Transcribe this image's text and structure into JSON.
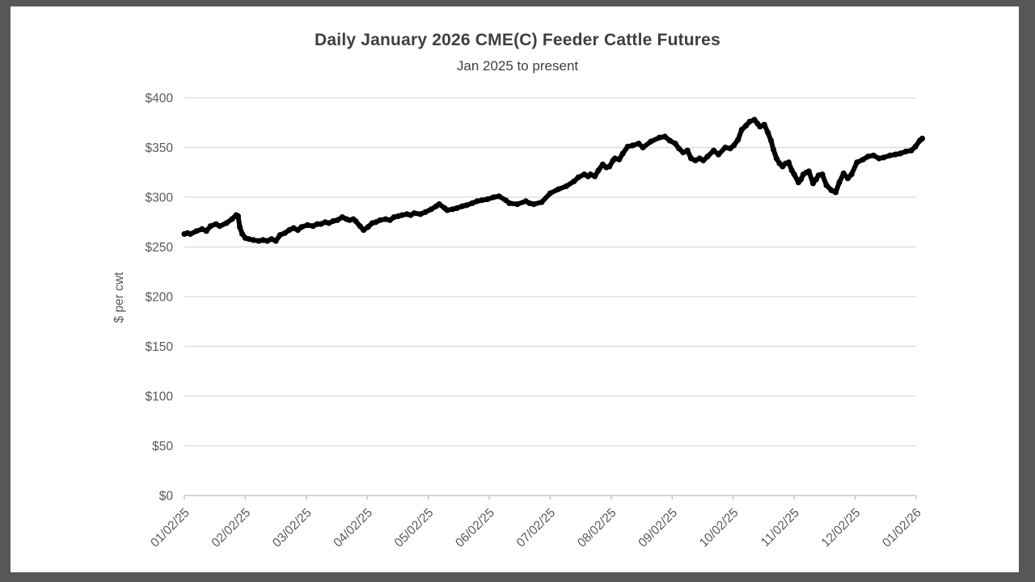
{
  "frame": {
    "border_color": "#575757",
    "background": "#ffffff"
  },
  "colors": {
    "grid": "#d9d9d9",
    "axis_line": "#bfbfbf",
    "tick_text": "#595959",
    "title_text": "#3f3f3f",
    "line": "#000000"
  },
  "chart_data": {
    "type": "line",
    "title": "Daily January 2026 CME(C) Feeder Cattle Futures",
    "subtitle": "Jan 2025 to present",
    "xlabel": "",
    "ylabel": "$ per cwt",
    "ylim": [
      0,
      400
    ],
    "y_tick_values": [
      0,
      50,
      100,
      150,
      200,
      250,
      300,
      350,
      400
    ],
    "y_tick_labels": [
      "$0",
      "$50",
      "$100",
      "$150",
      "$200",
      "$250",
      "$300",
      "$350",
      "$400"
    ],
    "x_ticks": [
      "01/02/25",
      "02/02/25",
      "03/02/25",
      "04/02/25",
      "05/02/25",
      "06/02/25",
      "07/02/25",
      "08/02/25",
      "09/02/25",
      "10/02/25",
      "11/02/25",
      "12/02/25",
      "01/02/26"
    ],
    "grid": "horizontal",
    "legend": "none",
    "marker": true,
    "x_unit": "months since 01/02/25",
    "series": [
      {
        "points": [
          [
            0.0,
            263
          ],
          [
            0.05,
            264
          ],
          [
            0.1,
            263
          ],
          [
            0.2,
            266
          ],
          [
            0.29,
            268
          ],
          [
            0.36,
            266
          ],
          [
            0.43,
            271
          ],
          [
            0.52,
            273
          ],
          [
            0.58,
            271
          ],
          [
            0.69,
            274
          ],
          [
            0.78,
            278
          ],
          [
            0.85,
            282
          ],
          [
            0.88,
            281
          ],
          [
            0.91,
            270
          ],
          [
            0.95,
            263
          ],
          [
            1.0,
            259
          ],
          [
            1.06,
            258
          ],
          [
            1.13,
            257
          ],
          [
            1.22,
            256
          ],
          [
            1.29,
            257
          ],
          [
            1.36,
            256
          ],
          [
            1.43,
            258
          ],
          [
            1.5,
            256
          ],
          [
            1.57,
            262
          ],
          [
            1.65,
            264
          ],
          [
            1.72,
            267
          ],
          [
            1.79,
            269
          ],
          [
            1.86,
            267
          ],
          [
            1.92,
            270
          ],
          [
            2.02,
            272
          ],
          [
            2.11,
            271
          ],
          [
            2.18,
            273
          ],
          [
            2.24,
            273
          ],
          [
            2.31,
            275
          ],
          [
            2.37,
            274
          ],
          [
            2.44,
            276
          ],
          [
            2.51,
            277
          ],
          [
            2.59,
            280
          ],
          [
            2.66,
            278
          ],
          [
            2.71,
            277
          ],
          [
            2.77,
            278
          ],
          [
            2.81,
            276
          ],
          [
            2.88,
            271
          ],
          [
            2.94,
            267
          ],
          [
            3.01,
            270
          ],
          [
            3.08,
            274
          ],
          [
            3.14,
            275
          ],
          [
            3.21,
            277
          ],
          [
            3.3,
            278
          ],
          [
            3.37,
            277
          ],
          [
            3.44,
            280
          ],
          [
            3.51,
            281
          ],
          [
            3.57,
            282
          ],
          [
            3.65,
            283
          ],
          [
            3.71,
            282
          ],
          [
            3.77,
            284
          ],
          [
            3.87,
            283
          ],
          [
            3.95,
            285
          ],
          [
            4.05,
            288
          ],
          [
            4.13,
            291
          ],
          [
            4.18,
            293
          ],
          [
            4.27,
            289
          ],
          [
            4.31,
            287
          ],
          [
            4.4,
            288
          ],
          [
            4.47,
            289
          ],
          [
            4.56,
            291
          ],
          [
            4.63,
            292
          ],
          [
            4.72,
            294
          ],
          [
            4.8,
            296
          ],
          [
            4.88,
            297
          ],
          [
            4.97,
            298
          ],
          [
            5.07,
            300
          ],
          [
            5.16,
            301
          ],
          [
            5.27,
            297
          ],
          [
            5.33,
            294
          ],
          [
            5.46,
            293
          ],
          [
            5.6,
            296
          ],
          [
            5.66,
            294
          ],
          [
            5.73,
            293
          ],
          [
            5.86,
            295
          ],
          [
            6.0,
            304
          ],
          [
            6.13,
            308
          ],
          [
            6.26,
            311
          ],
          [
            6.39,
            316
          ],
          [
            6.46,
            320
          ],
          [
            6.56,
            323
          ],
          [
            6.62,
            321
          ],
          [
            6.66,
            323
          ],
          [
            6.73,
            321
          ],
          [
            6.79,
            327
          ],
          [
            6.86,
            333
          ],
          [
            6.92,
            330
          ],
          [
            6.97,
            331
          ],
          [
            7.03,
            337
          ],
          [
            7.06,
            339
          ],
          [
            7.13,
            338
          ],
          [
            7.19,
            344
          ],
          [
            7.27,
            351
          ],
          [
            7.35,
            352
          ],
          [
            7.45,
            354
          ],
          [
            7.52,
            350
          ],
          [
            7.65,
            356
          ],
          [
            7.79,
            360
          ],
          [
            7.88,
            361
          ],
          [
            7.96,
            357
          ],
          [
            8.05,
            354
          ],
          [
            8.11,
            349
          ],
          [
            8.18,
            345
          ],
          [
            8.25,
            347
          ],
          [
            8.31,
            339
          ],
          [
            8.38,
            337
          ],
          [
            8.45,
            339
          ],
          [
            8.51,
            337
          ],
          [
            8.58,
            341
          ],
          [
            8.68,
            347
          ],
          [
            8.76,
            343
          ],
          [
            8.87,
            350
          ],
          [
            8.95,
            349
          ],
          [
            9.01,
            352
          ],
          [
            9.08,
            358
          ],
          [
            9.14,
            368
          ],
          [
            9.21,
            372
          ],
          [
            9.27,
            376
          ],
          [
            9.35,
            378
          ],
          [
            9.4,
            374
          ],
          [
            9.44,
            371
          ],
          [
            9.51,
            373
          ],
          [
            9.57,
            365
          ],
          [
            9.62,
            357
          ],
          [
            9.66,
            348
          ],
          [
            9.71,
            339
          ],
          [
            9.76,
            334
          ],
          [
            9.81,
            331
          ],
          [
            9.86,
            334
          ],
          [
            9.91,
            335
          ],
          [
            9.96,
            327
          ],
          [
            10.0,
            323
          ],
          [
            10.07,
            315
          ],
          [
            10.11,
            318
          ],
          [
            10.15,
            323
          ],
          [
            10.2,
            325
          ],
          [
            10.24,
            326
          ],
          [
            10.31,
            314
          ],
          [
            10.36,
            318
          ],
          [
            10.4,
            322
          ],
          [
            10.46,
            323
          ],
          [
            10.53,
            312
          ],
          [
            10.61,
            307
          ],
          [
            10.68,
            305
          ],
          [
            10.74,
            315
          ],
          [
            10.81,
            324
          ],
          [
            10.88,
            319
          ],
          [
            10.94,
            323
          ],
          [
            11.03,
            335
          ],
          [
            11.13,
            338
          ],
          [
            11.21,
            341
          ],
          [
            11.3,
            342
          ],
          [
            11.39,
            339
          ],
          [
            11.47,
            340
          ],
          [
            11.57,
            342
          ],
          [
            11.66,
            343
          ],
          [
            11.74,
            344
          ],
          [
            11.83,
            346
          ],
          [
            11.92,
            347
          ],
          [
            11.99,
            351
          ],
          [
            12.06,
            357
          ],
          [
            12.1,
            359
          ]
        ]
      }
    ]
  }
}
